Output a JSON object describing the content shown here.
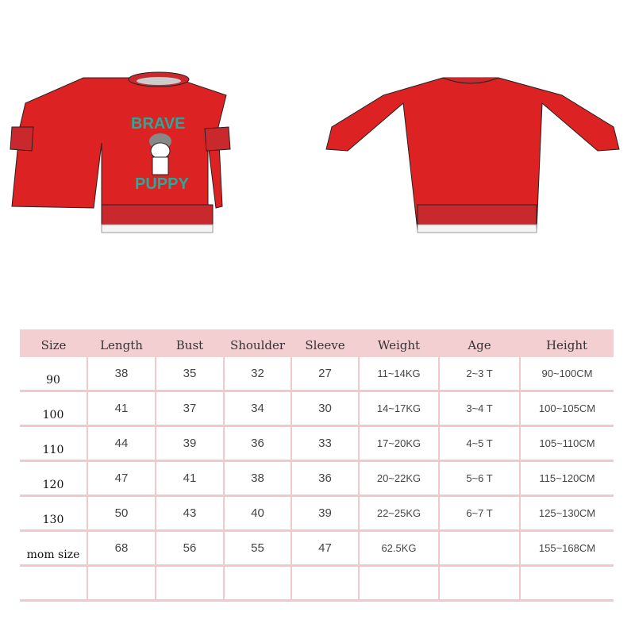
{
  "colors": {
    "garment": "#dc2222",
    "rib": "#c9292c",
    "header": "#f3cfd2",
    "print": "#2aa89a"
  },
  "print": {
    "top_word": "BRAVE",
    "bottom_word": "PUPPY"
  },
  "table": {
    "headers": [
      "Size",
      "Length",
      "Bust",
      "Shoulder",
      "Sleeve",
      "Weight",
      "Age",
      "Height"
    ],
    "rows": [
      [
        "90",
        "38",
        "35",
        "32",
        "27",
        "11~14KG",
        "2~3 T",
        "90~100CM"
      ],
      [
        "100",
        "41",
        "37",
        "34",
        "30",
        "14~17KG",
        "3~4 T",
        "100~105CM"
      ],
      [
        "110",
        "44",
        "39",
        "36",
        "33",
        "17~20KG",
        "4~5 T",
        "105~110CM"
      ],
      [
        "120",
        "47",
        "41",
        "38",
        "36",
        "20~22KG",
        "5~6 T",
        "115~120CM"
      ],
      [
        "130",
        "50",
        "43",
        "40",
        "39",
        "22~25KG",
        "6~7 T",
        "125~130CM"
      ],
      [
        "mom size",
        "68",
        "56",
        "55",
        "47",
        "62.5KG",
        "",
        "155~168CM"
      ],
      [
        "",
        "",
        "",
        "",
        "",
        "",
        "",
        ""
      ]
    ]
  }
}
